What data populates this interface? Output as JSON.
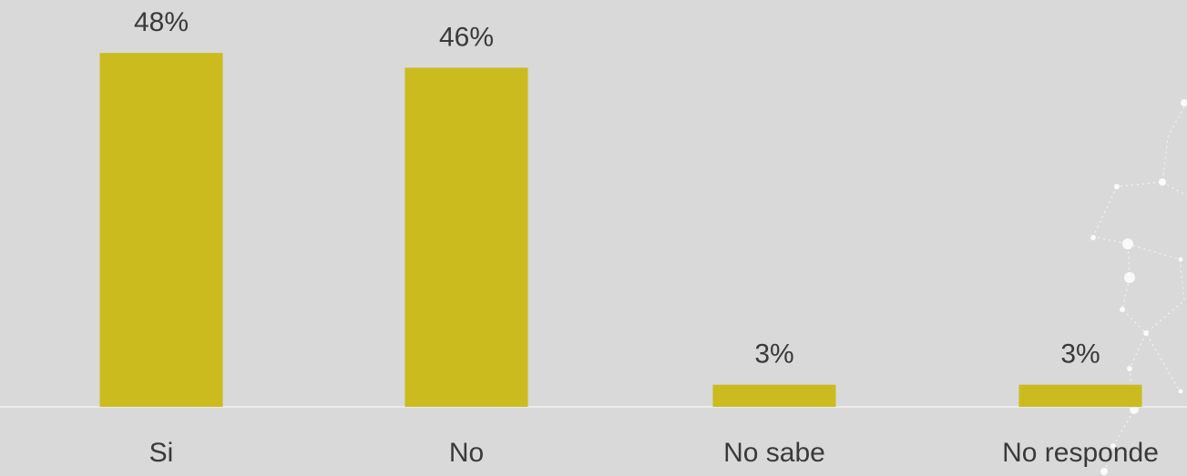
{
  "chart_data": {
    "type": "bar",
    "categories": [
      "Si",
      "No",
      "No sabe",
      "No responde"
    ],
    "values": [
      48,
      46,
      3,
      3
    ],
    "value_labels": [
      "48%",
      "46%",
      "3%",
      "3%"
    ],
    "title": "",
    "xlabel": "",
    "ylabel": "",
    "ylim": [
      0,
      50
    ],
    "grid": false,
    "legend": "none",
    "colors": {
      "bar": "#cbbb1e",
      "baseline": "#ebebeb",
      "text": "#3a3a3a",
      "background": "#d9d9d9",
      "decoration": "#ffffff"
    }
  }
}
